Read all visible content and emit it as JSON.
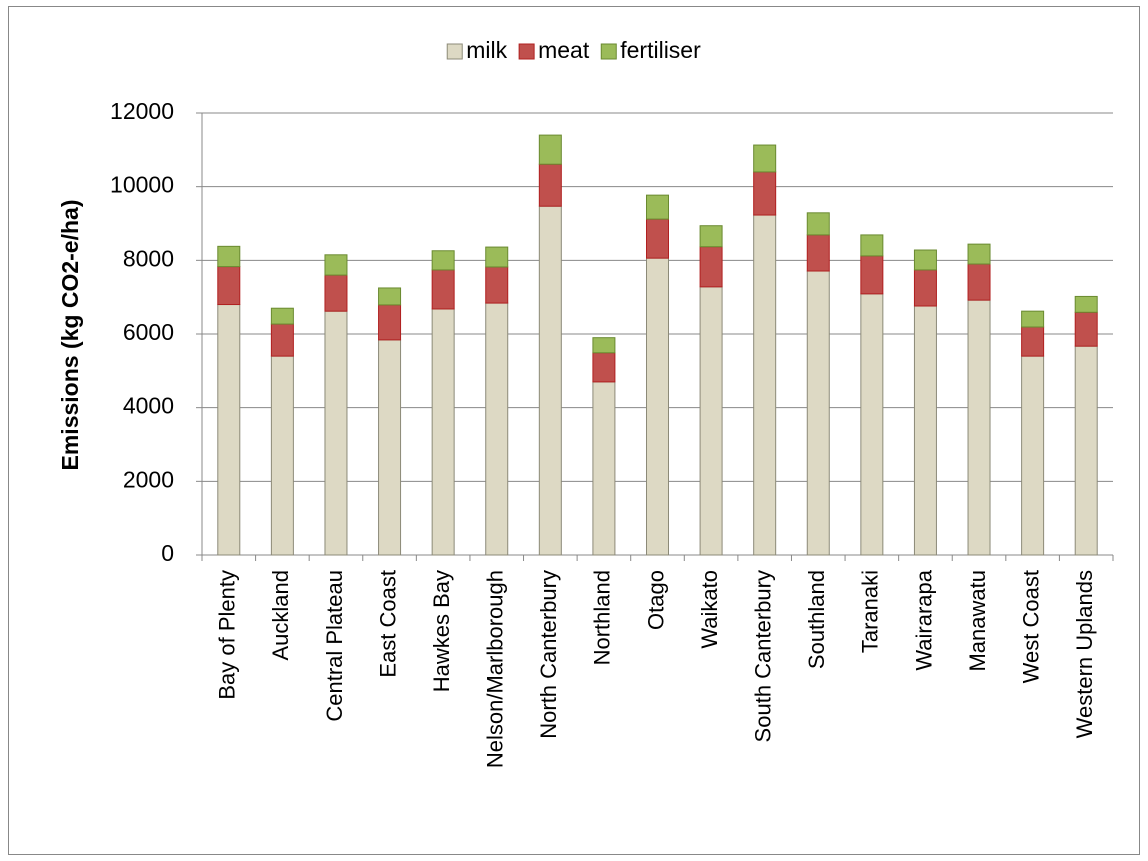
{
  "chart_data": {
    "type": "stacked_bar",
    "y_label": "Emissions (kg CO2-e/ha)",
    "categories": [
      "Bay of Plenty",
      "Auckland",
      "Central Plateau",
      "East Coast",
      "Hawkes Bay",
      "Nelson/Marlborough",
      "North Canterbury",
      "Northland",
      "Otago",
      "Waikato",
      "South Canterbury",
      "Southland",
      "Taranaki",
      "Wairarapa",
      "Manawatu",
      "West Coast",
      "Western Uplands"
    ],
    "series": [
      {
        "name": "milk",
        "color": "#ddd9c4",
        "values": [
          6800,
          5400,
          6620,
          5840,
          6680,
          6840,
          9470,
          4700,
          8060,
          7280,
          9230,
          7710,
          7090,
          6760,
          6920,
          5400,
          5670
        ]
      },
      {
        "name": "meat",
        "color": "#c0504d",
        "values": [
          1030,
          870,
          980,
          950,
          1060,
          980,
          1140,
          790,
          1060,
          1090,
          1170,
          980,
          1030,
          980,
          980,
          790,
          920
        ]
      },
      {
        "name": "fertiliser",
        "color": "#9bbb59",
        "values": [
          550,
          430,
          550,
          460,
          520,
          540,
          790,
          410,
          650,
          570,
          730,
          600,
          570,
          540,
          540,
          430,
          430
        ]
      }
    ],
    "ylim": [
      0,
      12000
    ],
    "yticks": [
      0,
      2000,
      4000,
      6000,
      8000,
      10000,
      12000
    ],
    "grid": true,
    "legend": "top"
  }
}
